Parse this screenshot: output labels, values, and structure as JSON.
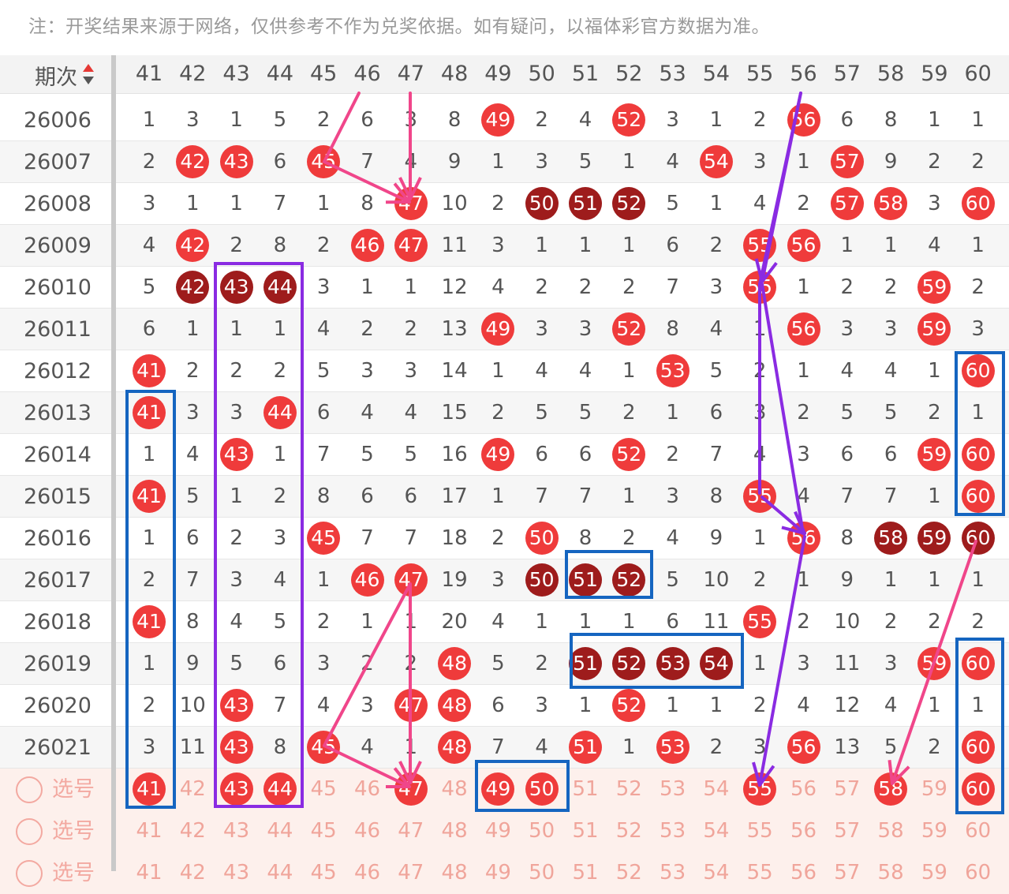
{
  "note": "注：开奖结果来源于网络，仅供参考不作为兑奖依据。如有疑问，以福体彩官方数据为准。",
  "header": {
    "issue_label": "期次"
  },
  "columns": [
    41,
    42,
    43,
    44,
    45,
    46,
    47,
    48,
    49,
    50,
    51,
    52,
    53,
    54,
    55,
    56,
    57,
    58,
    59,
    60
  ],
  "rows": [
    {
      "issue": "26006",
      "cells": [
        "1",
        "3",
        "1",
        "5",
        "2",
        "6",
        "3",
        "8",
        "49",
        "2",
        "4",
        "52",
        "3",
        "1",
        "2",
        "56",
        "6",
        "8",
        "1",
        "1"
      ],
      "marks": {
        "49": "red",
        "52": "red",
        "56": "red"
      }
    },
    {
      "issue": "26007",
      "cells": [
        "2",
        "42",
        "43",
        "6",
        "45",
        "7",
        "4",
        "9",
        "1",
        "3",
        "5",
        "1",
        "4",
        "54",
        "3",
        "1",
        "57",
        "9",
        "2",
        "2"
      ],
      "marks": {
        "42": "red",
        "43": "red",
        "45": "red",
        "54": "red",
        "57": "red"
      }
    },
    {
      "issue": "26008",
      "cells": [
        "3",
        "1",
        "1",
        "7",
        "1",
        "8",
        "47",
        "10",
        "2",
        "50",
        "51",
        "52",
        "5",
        "1",
        "4",
        "2",
        "57",
        "58",
        "3",
        "60"
      ],
      "marks": {
        "47": "red",
        "50": "dark",
        "51": "dark",
        "52": "dark",
        "57": "red",
        "58": "red",
        "60": "red"
      }
    },
    {
      "issue": "26009",
      "cells": [
        "4",
        "42",
        "2",
        "8",
        "2",
        "46",
        "47",
        "11",
        "3",
        "1",
        "1",
        "1",
        "6",
        "2",
        "55",
        "56",
        "1",
        "1",
        "4",
        "1"
      ],
      "marks": {
        "42": "red",
        "46": "red",
        "47": "red",
        "55": "red",
        "56": "red"
      }
    },
    {
      "issue": "26010",
      "cells": [
        "5",
        "42",
        "43",
        "44",
        "3",
        "1",
        "1",
        "12",
        "4",
        "2",
        "2",
        "2",
        "7",
        "3",
        "55",
        "1",
        "2",
        "2",
        "59",
        "2"
      ],
      "marks": {
        "42": "dark",
        "43": "dark",
        "44": "dark",
        "55": "red",
        "59": "red"
      }
    },
    {
      "issue": "26011",
      "cells": [
        "6",
        "1",
        "1",
        "1",
        "4",
        "2",
        "2",
        "13",
        "49",
        "3",
        "3",
        "52",
        "8",
        "4",
        "1",
        "56",
        "3",
        "3",
        "59",
        "3"
      ],
      "marks": {
        "49": "red",
        "52": "red",
        "56": "red",
        "59": "red"
      }
    },
    {
      "issue": "26012",
      "cells": [
        "41",
        "2",
        "2",
        "2",
        "5",
        "3",
        "3",
        "14",
        "1",
        "4",
        "4",
        "1",
        "53",
        "5",
        "2",
        "1",
        "4",
        "4",
        "1",
        "60"
      ],
      "marks": {
        "41": "red",
        "53": "red",
        "60": "red"
      }
    },
    {
      "issue": "26013",
      "cells": [
        "41",
        "3",
        "3",
        "44",
        "6",
        "4",
        "4",
        "15",
        "2",
        "5",
        "5",
        "2",
        "1",
        "6",
        "3",
        "2",
        "5",
        "5",
        "2",
        "1"
      ],
      "marks": {
        "41": "red",
        "44": "red"
      }
    },
    {
      "issue": "26014",
      "cells": [
        "1",
        "4",
        "43",
        "1",
        "7",
        "5",
        "5",
        "16",
        "49",
        "6",
        "6",
        "52",
        "2",
        "7",
        "4",
        "3",
        "6",
        "6",
        "59",
        "60"
      ],
      "marks": {
        "43": "red",
        "49": "red",
        "52": "red",
        "59": "red",
        "60": "red"
      }
    },
    {
      "issue": "26015",
      "cells": [
        "41",
        "5",
        "1",
        "2",
        "8",
        "6",
        "6",
        "17",
        "1",
        "7",
        "7",
        "1",
        "3",
        "8",
        "55",
        "4",
        "7",
        "7",
        "1",
        "60"
      ],
      "marks": {
        "41": "red",
        "55": "red",
        "60": "red"
      }
    },
    {
      "issue": "26016",
      "cells": [
        "1",
        "6",
        "2",
        "3",
        "45",
        "7",
        "7",
        "18",
        "2",
        "50",
        "8",
        "2",
        "4",
        "9",
        "1",
        "56",
        "8",
        "58",
        "59",
        "60"
      ],
      "marks": {
        "45": "red",
        "50": "red",
        "56": "red",
        "58": "dark",
        "59": "dark",
        "60": "dark"
      }
    },
    {
      "issue": "26017",
      "cells": [
        "2",
        "7",
        "3",
        "4",
        "1",
        "46",
        "47",
        "19",
        "3",
        "50",
        "51",
        "52",
        "5",
        "10",
        "2",
        "1",
        "9",
        "1",
        "1",
        "1"
      ],
      "marks": {
        "46": "red",
        "47": "red",
        "50": "dark",
        "51": "dark",
        "52": "dark"
      }
    },
    {
      "issue": "26018",
      "cells": [
        "41",
        "8",
        "4",
        "5",
        "2",
        "1",
        "1",
        "20",
        "4",
        "1",
        "1",
        "1",
        "6",
        "11",
        "55",
        "2",
        "10",
        "2",
        "2",
        "2"
      ],
      "marks": {
        "41": "red",
        "55": "red"
      }
    },
    {
      "issue": "26019",
      "cells": [
        "1",
        "9",
        "5",
        "6",
        "3",
        "2",
        "2",
        "48",
        "5",
        "2",
        "51",
        "52",
        "53",
        "54",
        "1",
        "3",
        "11",
        "3",
        "59",
        "60"
      ],
      "marks": {
        "48": "red",
        "51": "dark",
        "52": "dark",
        "53": "dark",
        "54": "dark",
        "59": "red",
        "60": "red"
      }
    },
    {
      "issue": "26020",
      "cells": [
        "2",
        "10",
        "43",
        "7",
        "4",
        "3",
        "47",
        "48",
        "6",
        "3",
        "1",
        "52",
        "1",
        "1",
        "2",
        "4",
        "12",
        "4",
        "1",
        "1"
      ],
      "marks": {
        "43": "red",
        "47": "red",
        "48": "red",
        "52": "red"
      }
    },
    {
      "issue": "26021",
      "cells": [
        "3",
        "11",
        "43",
        "8",
        "45",
        "4",
        "1",
        "48",
        "7",
        "4",
        "51",
        "1",
        "53",
        "2",
        "3",
        "56",
        "13",
        "5",
        "2",
        "60"
      ],
      "marks": {
        "43": "red",
        "45": "red",
        "48": "red",
        "51": "red",
        "53": "red",
        "56": "red",
        "60": "red"
      }
    }
  ],
  "pick_rows": [
    {
      "label": "选号",
      "selected": [
        "41",
        "43",
        "44",
        "47",
        "49",
        "50",
        "55",
        "58",
        "60"
      ]
    },
    {
      "label": "选号",
      "selected": []
    },
    {
      "label": "选号",
      "selected": []
    }
  ],
  "colors": {
    "ball_red": "#ef3b3b",
    "ball_dark": "#9e1c1c",
    "box_blue": "#1565c0",
    "box_purple": "#8a2be2",
    "arrow_pink": "#f0468a",
    "arrow_purple": "#8a2be2"
  }
}
